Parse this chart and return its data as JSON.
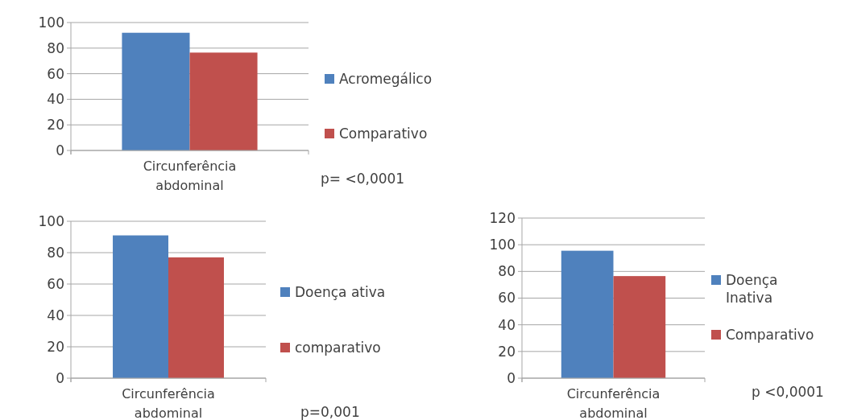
{
  "chart_data": [
    {
      "type": "bar",
      "categories": [
        "Circunferência abdominal"
      ],
      "series": [
        {
          "name": "Acromegálico",
          "color": "#4f81bd",
          "values": [
            92
          ]
        },
        {
          "name": "Comparativo",
          "color": "#c0504d",
          "values": [
            76.5
          ]
        }
      ],
      "ylim": [
        0,
        100
      ],
      "yticks": [
        0,
        20,
        40,
        60,
        80,
        100
      ],
      "grid": "y",
      "legend": "right",
      "annotations": [
        "p= <0,0001"
      ]
    },
    {
      "type": "bar",
      "categories": [
        "Circunferência abdominal"
      ],
      "series": [
        {
          "name": "Doença ativa",
          "color": "#4f81bd",
          "values": [
            91
          ]
        },
        {
          "name": "comparativo",
          "color": "#c0504d",
          "values": [
            77
          ]
        }
      ],
      "ylim": [
        0,
        100
      ],
      "yticks": [
        0,
        20,
        40,
        60,
        80,
        100
      ],
      "grid": "y",
      "legend": "right",
      "annotations": [
        "p=0,001"
      ]
    },
    {
      "type": "bar",
      "categories": [
        "Circunferência abdominal"
      ],
      "series": [
        {
          "name": "Doença Inativa",
          "color": "#4f81bd",
          "values": [
            95.5
          ]
        },
        {
          "name": "Comparativo",
          "color": "#c0504d",
          "values": [
            76.5
          ]
        }
      ],
      "ylim": [
        0,
        120
      ],
      "yticks": [
        0,
        20,
        40,
        60,
        80,
        100,
        120
      ],
      "grid": "y",
      "legend": "right",
      "annotations": [
        "p <0,0001"
      ]
    }
  ]
}
